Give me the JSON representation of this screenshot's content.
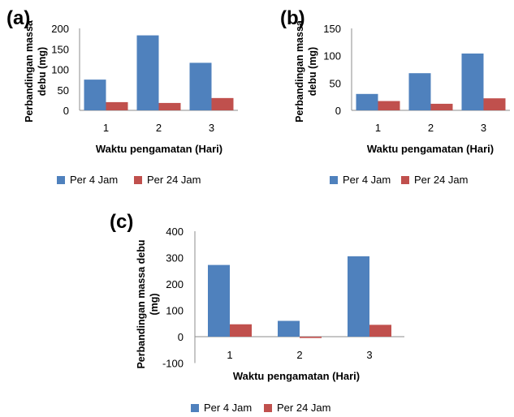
{
  "colors": {
    "series1": "#4f81bd",
    "series2": "#c0504d",
    "axis": "#8c8c8c"
  },
  "chart_data": [
    {
      "type": "bar",
      "panel_label": "(a)",
      "categories": [
        "1",
        "2",
        "3"
      ],
      "series": [
        {
          "name": "Per 4 Jam",
          "values": [
            75,
            183,
            116
          ]
        },
        {
          "name": "Per 24 Jam",
          "values": [
            20,
            18,
            30
          ]
        }
      ],
      "xlabel": "Waktu pengamatan (Hari)",
      "ylabel_lines": [
        "Perbandingan massa",
        "debu (mg)"
      ],
      "ylim": [
        0,
        200
      ],
      "yticks": [
        0,
        50,
        100,
        150,
        200
      ],
      "legend": "bottom"
    },
    {
      "type": "bar",
      "panel_label": "(b)",
      "categories": [
        "1",
        "2",
        "3"
      ],
      "series": [
        {
          "name": "Per 4 Jam",
          "values": [
            30,
            68,
            104
          ]
        },
        {
          "name": "Per 24 Jam",
          "values": [
            17,
            12,
            22
          ]
        }
      ],
      "xlabel": "Waktu pengamatan (Hari)",
      "ylabel_lines": [
        "Perbandingan massa",
        "debu (mg)"
      ],
      "ylim": [
        0,
        150
      ],
      "yticks": [
        0,
        50,
        100,
        150
      ],
      "legend": "bottom"
    },
    {
      "type": "bar",
      "panel_label": "(c)",
      "categories": [
        "1",
        "2",
        "3"
      ],
      "series": [
        {
          "name": "Per 4 Jam",
          "values": [
            272,
            60,
            305
          ]
        },
        {
          "name": "Per 24 Jam",
          "values": [
            47,
            -5,
            45
          ]
        }
      ],
      "xlabel": "Waktu pengamatan (Hari)",
      "ylabel_lines": [
        "Perbandingan massa debu",
        "(mg)"
      ],
      "ylim": [
        -100,
        400
      ],
      "yticks": [
        -100,
        0,
        100,
        200,
        300,
        400
      ],
      "legend": "bottom"
    }
  ]
}
